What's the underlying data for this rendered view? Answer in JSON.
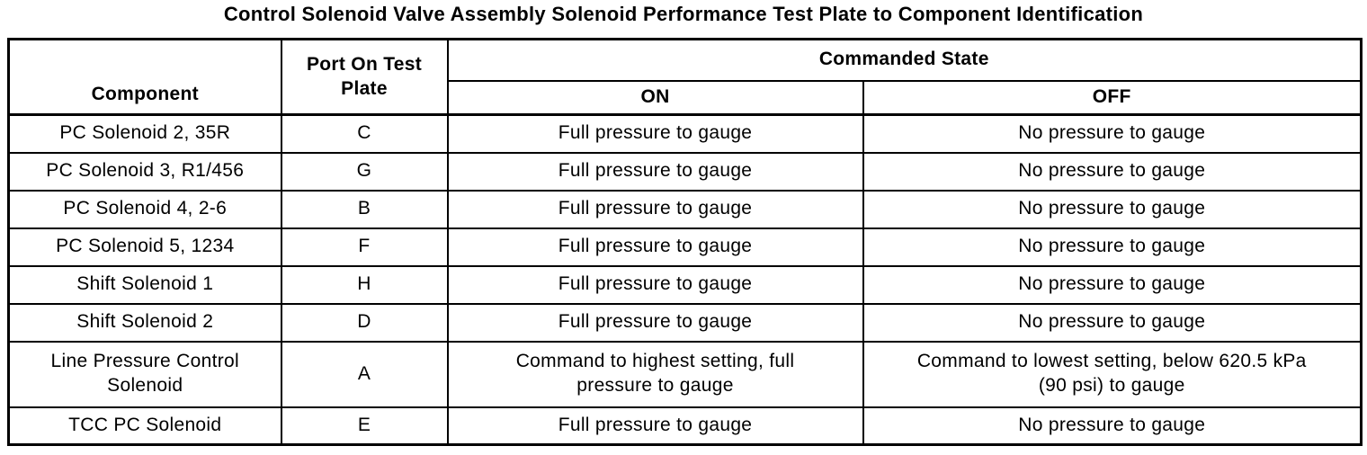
{
  "title": "Control Solenoid Valve Assembly Solenoid Performance Test Plate to Component Identification",
  "colors": {
    "border": "#000000",
    "background": "#ffffff",
    "text": "#000000"
  },
  "table": {
    "headers": {
      "component": "Component",
      "port": "Port On Test Plate",
      "commanded_state": "Commanded State",
      "on": "ON",
      "off": "OFF"
    },
    "rows": [
      {
        "component": "PC Solenoid 2, 35R",
        "port": "C",
        "on": "Full pressure to gauge",
        "off": "No pressure to gauge"
      },
      {
        "component": "PC Solenoid 3, R1/456",
        "port": "G",
        "on": "Full pressure to gauge",
        "off": "No pressure to gauge"
      },
      {
        "component": "PC Solenoid 4, 2-6",
        "port": "B",
        "on": "Full pressure to gauge",
        "off": "No pressure to gauge"
      },
      {
        "component": "PC Solenoid 5, 1234",
        "port": "F",
        "on": "Full pressure to gauge",
        "off": "No pressure to gauge"
      },
      {
        "component": "Shift Solenoid 1",
        "port": "H",
        "on": "Full pressure to gauge",
        "off": "No pressure to gauge"
      },
      {
        "component": "Shift Solenoid 2",
        "port": "D",
        "on": "Full pressure to gauge",
        "off": "No pressure to gauge"
      },
      {
        "component": "Line Pressure Control Solenoid",
        "port": "A",
        "on": "Command to highest setting, full pressure to gauge",
        "off": "Command to lowest setting, below 620.5 kPa (90 psi) to gauge"
      },
      {
        "component": "TCC PC Solenoid",
        "port": "E",
        "on": "Full pressure to gauge",
        "off": "No pressure to gauge"
      }
    ]
  }
}
